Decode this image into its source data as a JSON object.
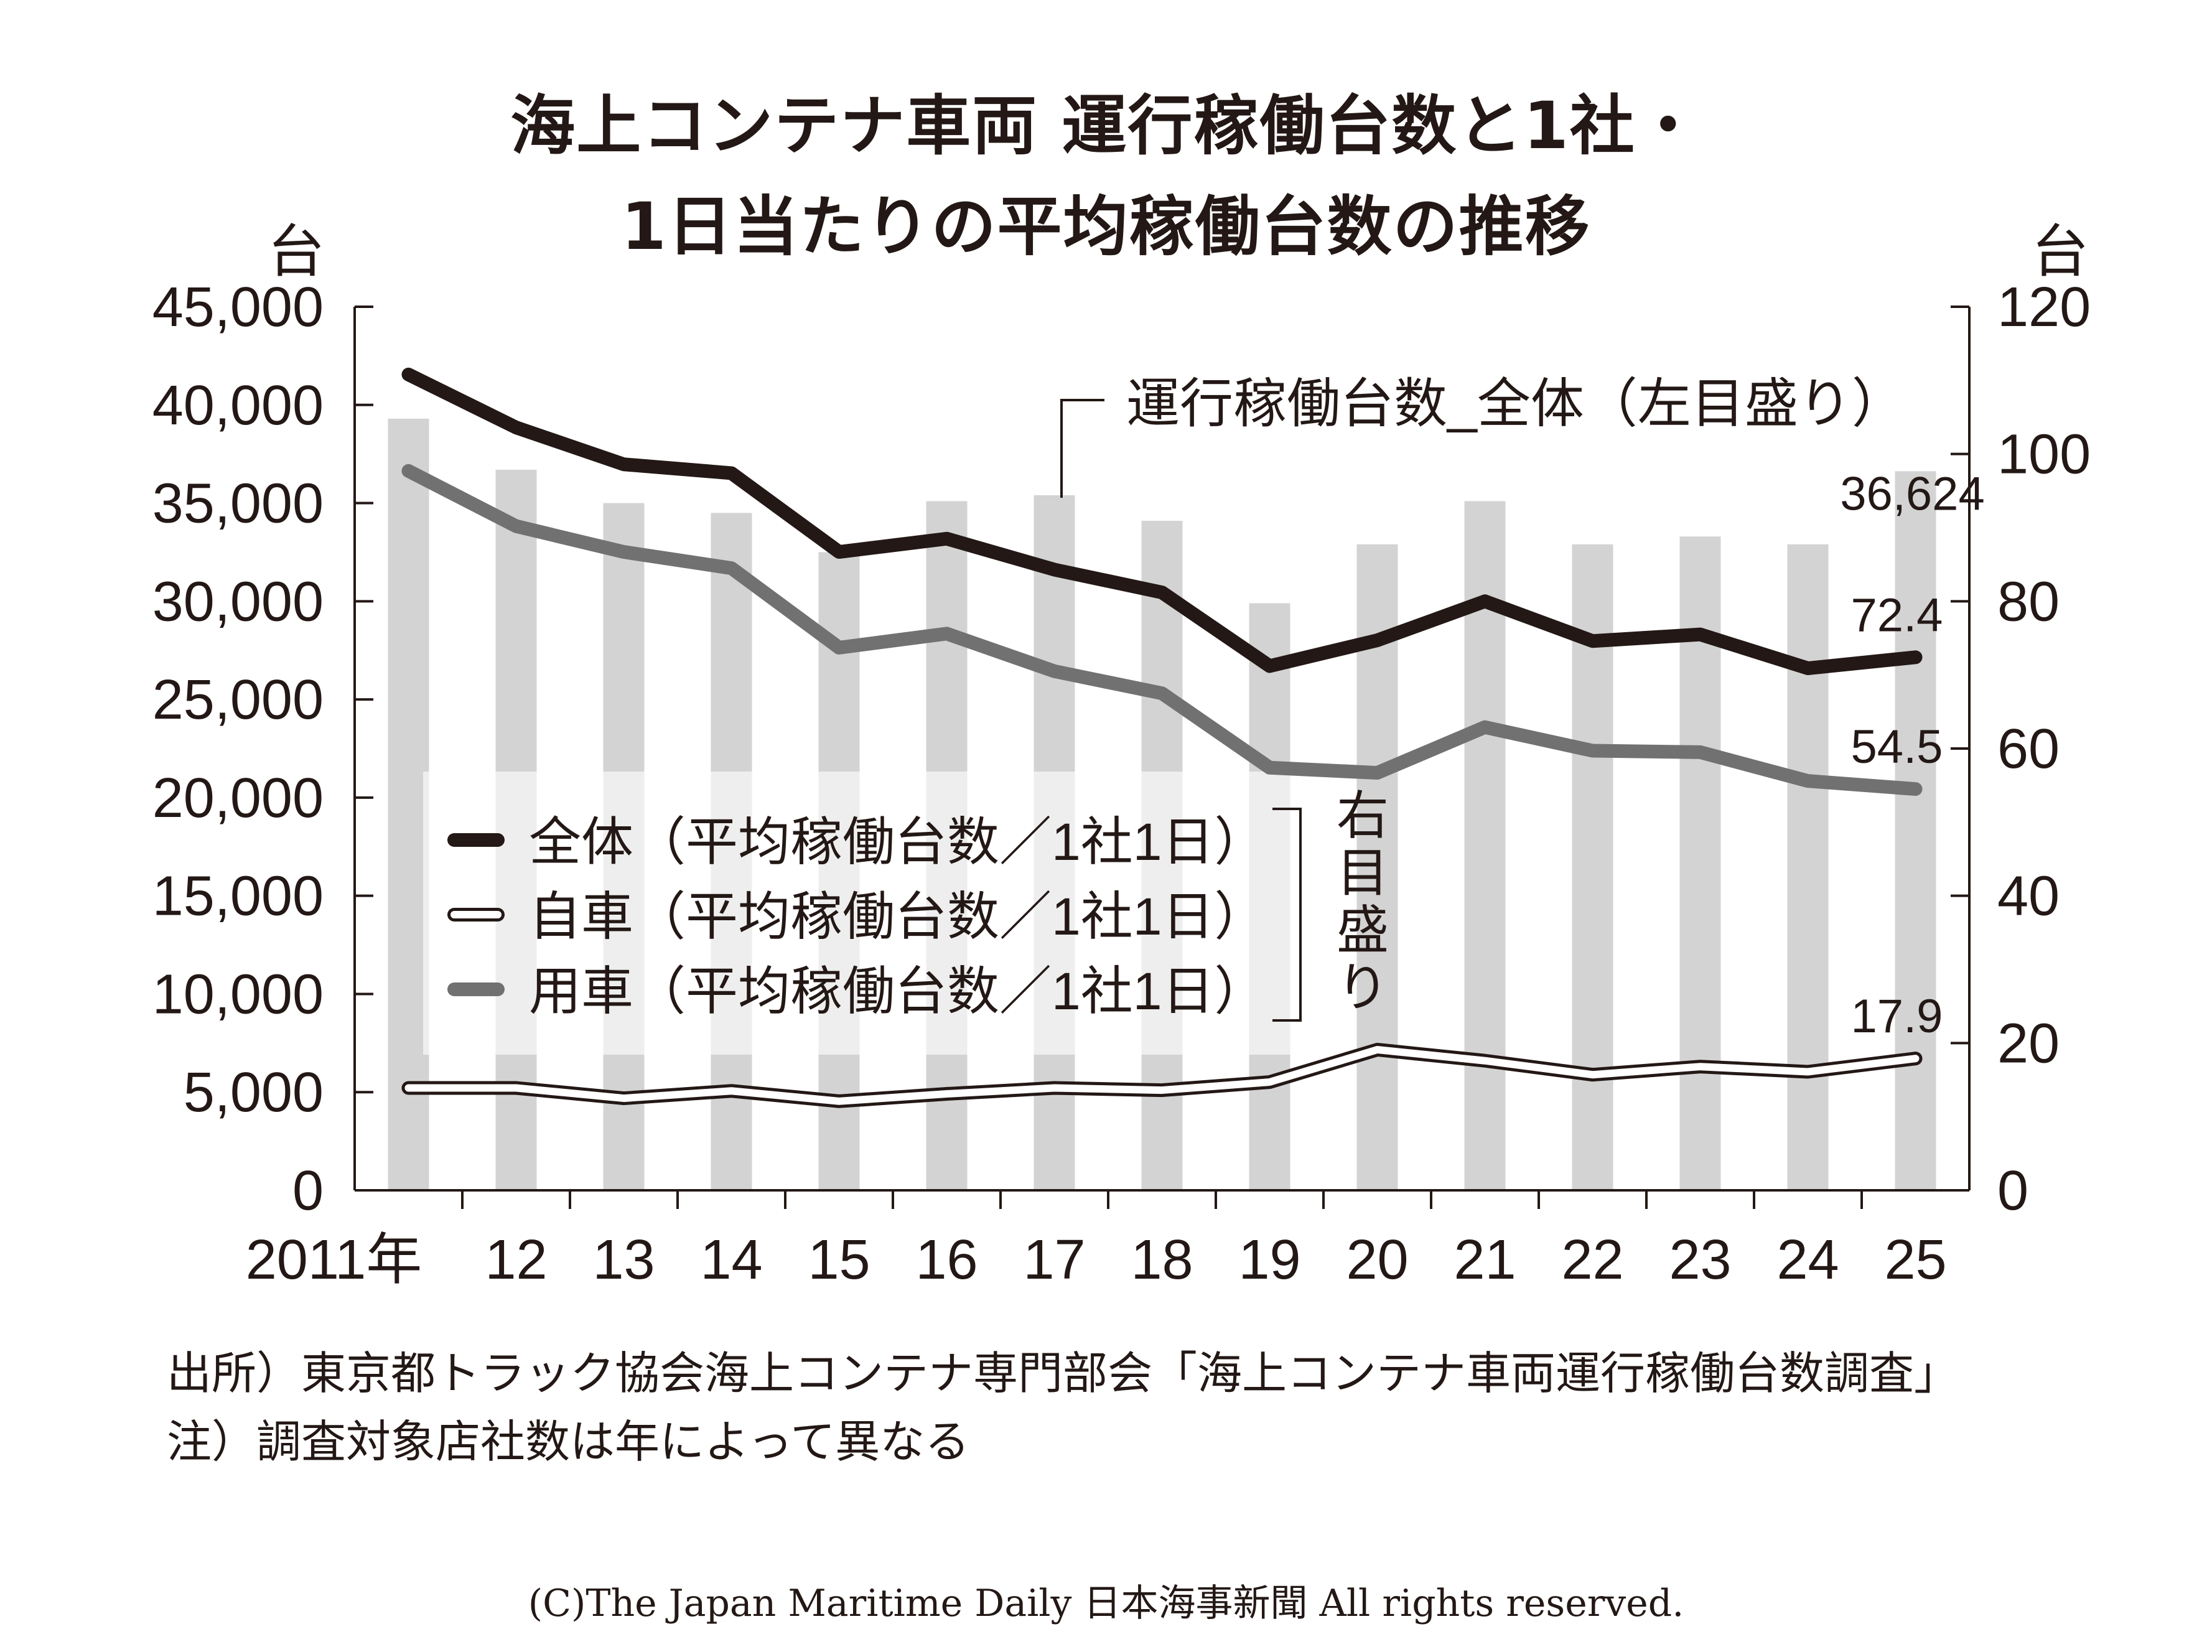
{
  "title_line1": "海上コンテナ車両 運行稼働台数と1社・",
  "title_line2": "1日当たりの平均稼働台数の推移",
  "unit_left": "台",
  "unit_right": "台",
  "source": "出所）東京都トラック協会海上コンテナ専門部会「海上コンテナ車両運行稼働台数調査」",
  "note": "注）調査対象店社数は年によって異なる",
  "copyright": "(C)The Japan Maritime Daily 日本海事新聞 All rights reserved.",
  "chart_data": {
    "type": "bar+line",
    "categories": [
      "2011年",
      "12",
      "13",
      "14",
      "15",
      "16",
      "17",
      "18",
      "19",
      "20",
      "21",
      "22",
      "23",
      "24",
      "25"
    ],
    "left_axis": {
      "ylim": [
        0,
        45000
      ],
      "ticks": [
        "0",
        "5,000",
        "10,000",
        "15,000",
        "20,000",
        "25,000",
        "30,000",
        "35,000",
        "40,000",
        "45,000"
      ]
    },
    "right_axis": {
      "ylim": [
        0,
        120
      ],
      "ticks": [
        "0",
        "20",
        "40",
        "60",
        "80",
        "100",
        "120"
      ]
    },
    "bars": {
      "name": "運行稼働台数_全体（左目盛り）",
      "axis": "left",
      "color": "#d3d3d3",
      "values": [
        39300,
        36700,
        35000,
        34500,
        32500,
        35100,
        35400,
        34100,
        29900,
        32900,
        35100,
        32900,
        33300,
        32900,
        36624
      ],
      "last_label": "36,624"
    },
    "series": [
      {
        "name": "全体（平均稼働台数／1社1日）",
        "axis": "right",
        "color": "#231815",
        "style": "solid",
        "values": [
          110.8,
          103.6,
          98.6,
          97.4,
          86.7,
          88.5,
          84.3,
          81.2,
          71.2,
          74.7,
          80.0,
          74.6,
          75.5,
          70.9,
          72.4
        ],
        "last_label": "72.4"
      },
      {
        "name": "自車（平均稼働台数／1社1日）",
        "axis": "right",
        "color": "#ffffff",
        "style": "outline",
        "values": [
          13.9,
          13.9,
          12.5,
          13.5,
          12.1,
          13.1,
          13.9,
          13.6,
          14.7,
          19.1,
          17.6,
          15.7,
          16.8,
          16.1,
          17.9
        ],
        "last_label": "17.9"
      },
      {
        "name": "用車（平均稼働台数／1社1日）",
        "axis": "right",
        "color": "#727171",
        "style": "solid",
        "values": [
          97.7,
          90.2,
          86.7,
          84.5,
          73.7,
          75.6,
          70.5,
          67.5,
          57.4,
          56.7,
          62.9,
          59.7,
          59.5,
          55.6,
          54.5
        ],
        "last_label": "54.5"
      }
    ],
    "legend_placement": "center-left",
    "legend_bracket_label": "右目盛り",
    "grid": false
  }
}
